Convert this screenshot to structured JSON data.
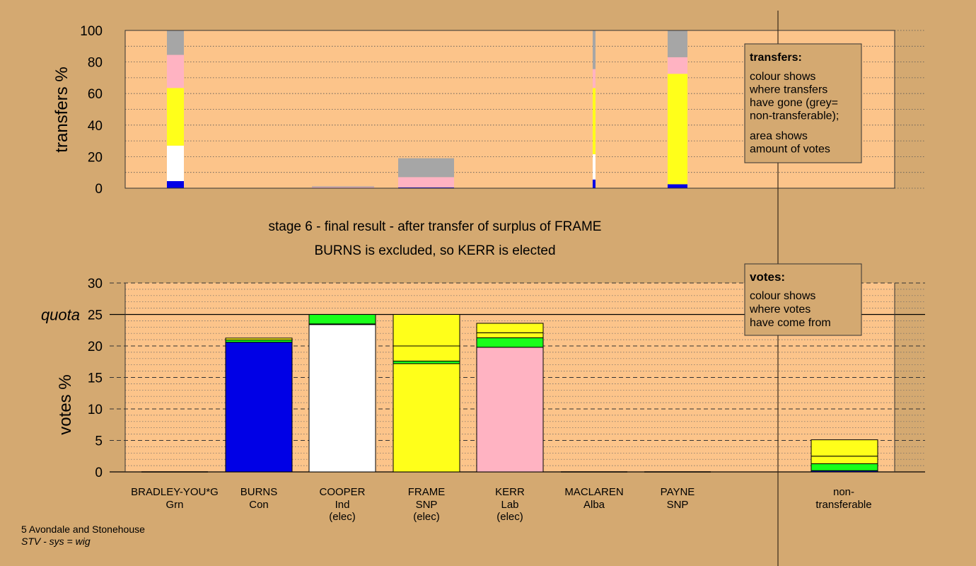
{
  "chart_data": [
    {
      "type": "bar",
      "name": "transfers",
      "ylabel": "transfers %",
      "ylim": [
        0,
        100
      ],
      "yticks": [
        0,
        20,
        40,
        60,
        80,
        100
      ],
      "bars": [
        {
          "candidate": "BRADLEY-YOU*G",
          "segments": [
            {
              "party": "Con",
              "value": 4.5
            },
            {
              "party": "Ind",
              "value": 22.5
            },
            {
              "party": "SNP",
              "value": 36.5
            },
            {
              "party": "Lab",
              "value": 21
            },
            {
              "party": "non-transferable",
              "value": 15.5
            }
          ]
        },
        {
          "candidate": "COOPER",
          "segments": [
            {
              "party": "Con",
              "value": 0.3
            },
            {
              "party": "Lab",
              "value": 0.4
            },
            {
              "party": "non-transferable",
              "value": 0.5
            }
          ]
        },
        {
          "candidate": "FRAME",
          "segments": [
            {
              "party": "Con",
              "value": 0.5
            },
            {
              "party": "Lab",
              "value": 6.5
            },
            {
              "party": "non-transferable",
              "value": 12
            }
          ]
        },
        {
          "candidate": "MACLAREN",
          "segments": [
            {
              "party": "Con",
              "value": 5.5
            },
            {
              "party": "Ind",
              "value": 16
            },
            {
              "party": "SNP",
              "value": 42
            },
            {
              "party": "Lab",
              "value": 12
            },
            {
              "party": "non-transferable",
              "value": 24.5
            }
          ]
        },
        {
          "candidate": "PAYNE",
          "segments": [
            {
              "party": "Con",
              "value": 2.5
            },
            {
              "party": "SNP",
              "value": 70
            },
            {
              "party": "Lab",
              "value": 10.5
            },
            {
              "party": "non-transferable",
              "value": 17
            }
          ]
        }
      ],
      "legend": {
        "title": "transfers:",
        "lines1": [
          "colour shows",
          "where transfers",
          "have gone (grey=",
          "non-transferable);"
        ],
        "lines2": [
          "area shows",
          "amount of votes"
        ]
      }
    },
    {
      "type": "bar",
      "name": "votes",
      "ylabel": "votes %",
      "ylim": [
        0,
        30
      ],
      "yticks": [
        0,
        5,
        10,
        15,
        20,
        25,
        30
      ],
      "quota": {
        "label": "quota",
        "value": 25
      },
      "categories": [
        {
          "name": "BRADLEY-YOU*G",
          "party": "Grn",
          "status": ""
        },
        {
          "name": "BURNS",
          "party": "Con",
          "status": ""
        },
        {
          "name": "COOPER",
          "party": "Ind",
          "status": "(elec)"
        },
        {
          "name": "FRAME",
          "party": "SNP",
          "status": "(elec)"
        },
        {
          "name": "KERR",
          "party": "Lab",
          "status": "(elec)"
        },
        {
          "name": "MACLAREN",
          "party": "Alba",
          "status": ""
        },
        {
          "name": "PAYNE",
          "party": "SNP",
          "status": ""
        }
      ],
      "nontransferable_label": [
        "non-",
        "transferable"
      ],
      "bars": [
        {
          "candidate": "BRADLEY-YOU*G",
          "segments": []
        },
        {
          "candidate": "BURNS",
          "segments": [
            {
              "party": "Con",
              "value": 20.6
            },
            {
              "party": "Grn",
              "value": 0.35
            },
            {
              "party": "SNP",
              "value": 0.3
            }
          ]
        },
        {
          "candidate": "COOPER",
          "segments": [
            {
              "party": "Ind",
              "value": 23.4
            },
            {
              "party": "SNP",
              "value": 0.1
            },
            {
              "party": "Grn",
              "value": 1.5
            }
          ]
        },
        {
          "candidate": "FRAME",
          "segments": [
            {
              "party": "SNP",
              "value": 17.2
            },
            {
              "party": "Grn",
              "value": 0.4
            },
            {
              "party": "SNP",
              "value": 2.4
            },
            {
              "party": "SNP",
              "value": 5.0
            }
          ]
        },
        {
          "candidate": "KERR",
          "segments": [
            {
              "party": "Lab",
              "value": 19.8
            },
            {
              "party": "Grn",
              "value": 1.5
            },
            {
              "party": "SNP",
              "value": 0.8
            },
            {
              "party": "SNP",
              "value": 1.5
            }
          ]
        },
        {
          "candidate": "MACLAREN",
          "segments": []
        },
        {
          "candidate": "PAYNE",
          "segments": []
        },
        {
          "candidate": "non-transferable",
          "segments": [
            {
              "party": "Con",
              "value": 0.2
            },
            {
              "party": "Grn",
              "value": 1.1
            },
            {
              "party": "SNP",
              "value": 1.2
            },
            {
              "party": "SNP",
              "value": 2.6
            }
          ]
        }
      ],
      "legend": {
        "title": "votes:",
        "lines": [
          "colour shows",
          "where votes",
          "have come from"
        ]
      }
    }
  ],
  "party_colors": {
    "Con": "#0000e6",
    "Ind": "#ffffff",
    "SNP": "#ffff1a",
    "Lab": "#ffb3c2",
    "Grn": "#1aff1a",
    "non-transferable": "#a6a6a6"
  },
  "colors": {
    "background": "#d4a971",
    "plot_area": "#fcc48a"
  },
  "stage": {
    "line1": "stage 6 - final result - after transfer of surplus of FRAME",
    "line2": "BURNS is excluded, so KERR is elected"
  },
  "footer": {
    "ward": "5 Avondale and Stonehouse",
    "system": "STV - sys = wig"
  }
}
